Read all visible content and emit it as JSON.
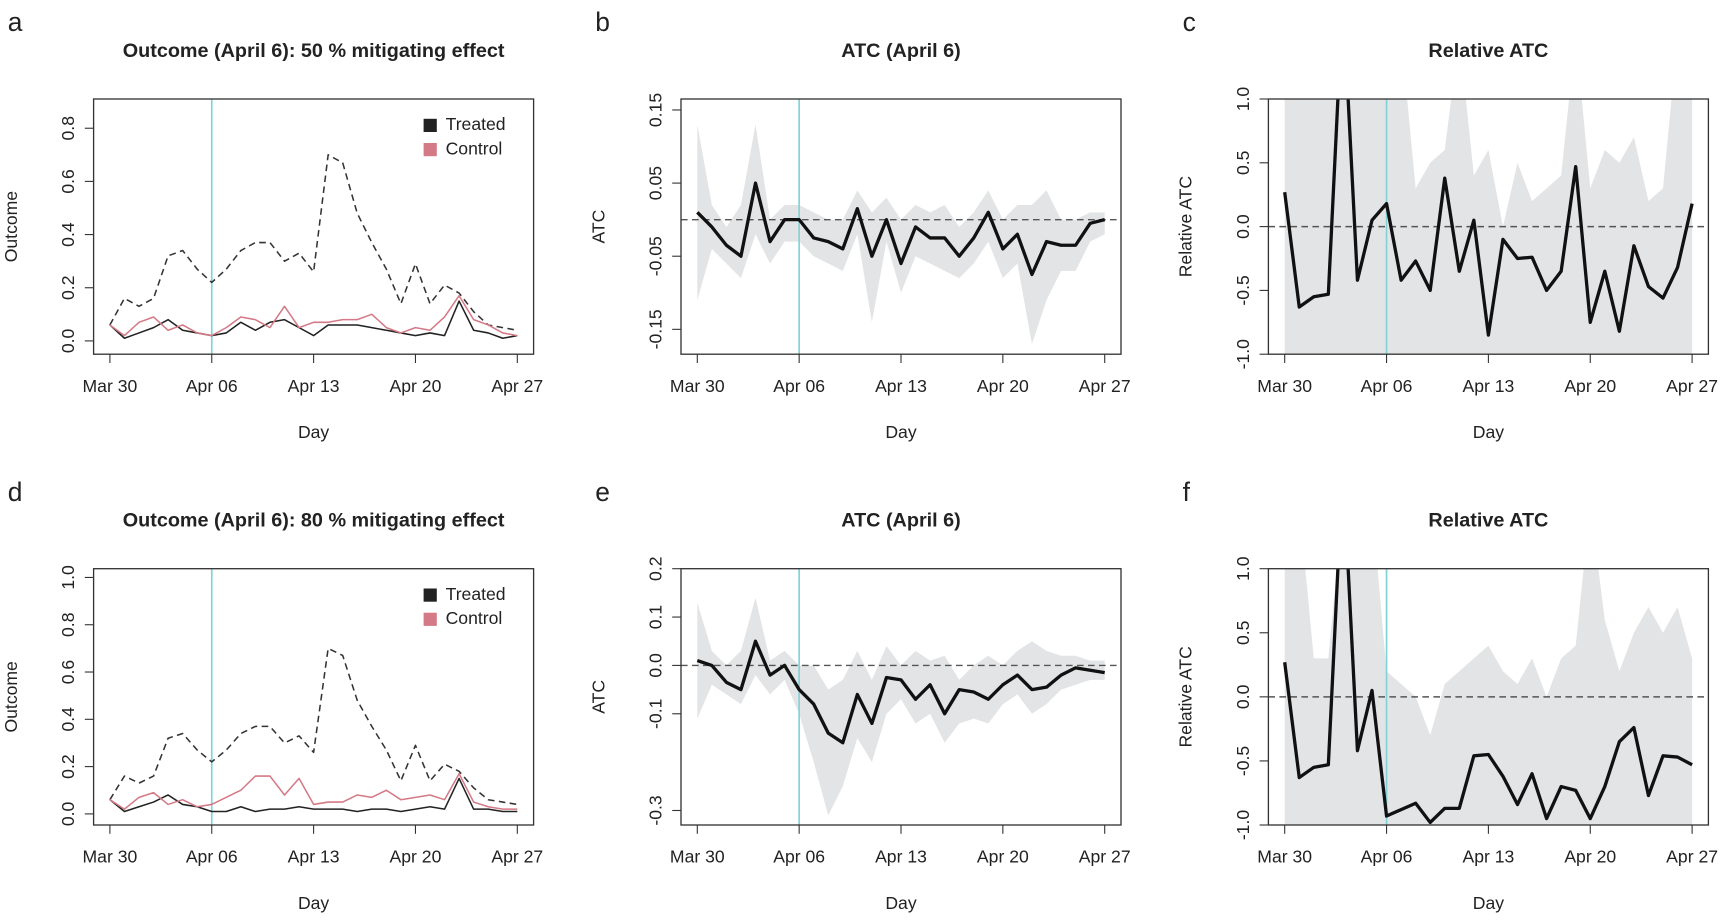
{
  "chart_data": [
    {
      "panel": "a",
      "type": "line",
      "title": "Outcome (April 6):  50 % mitigating effect",
      "xlabel": "Day",
      "ylabel": "Outcome",
      "x": [
        "Mar 30",
        "Mar 31",
        "Apr 01",
        "Apr 02",
        "Apr 03",
        "Apr 04",
        "Apr 05",
        "Apr 06",
        "Apr 07",
        "Apr 08",
        "Apr 09",
        "Apr 10",
        "Apr 11",
        "Apr 12",
        "Apr 13",
        "Apr 14",
        "Apr 15",
        "Apr 16",
        "Apr 17",
        "Apr 18",
        "Apr 19",
        "Apr 20",
        "Apr 21",
        "Apr 22",
        "Apr 23",
        "Apr 24",
        "Apr 25",
        "Apr 26",
        "Apr 27"
      ],
      "xticks": [
        "Mar 30",
        "Apr 06",
        "Apr 13",
        "Apr 20",
        "Apr 27"
      ],
      "vline": "Apr 06",
      "vline_color": "#7fd3d6",
      "ylim": [
        -0.05,
        0.91
      ],
      "yticks": [
        {
          "value": 0,
          "label": "0.0"
        },
        0.2,
        0.4,
        0.6,
        0.8
      ],
      "legend": "topright",
      "series": [
        {
          "color": "#333333",
          "dash": true,
          "values": [
            0.06,
            0.16,
            0.13,
            0.16,
            0.32,
            0.34,
            0.27,
            0.22,
            0.27,
            0.34,
            0.37,
            0.37,
            0.3,
            0.33,
            0.26,
            0.7,
            0.67,
            0.48,
            0.37,
            0.27,
            0.14,
            0.29,
            0.14,
            0.21,
            0.18,
            0.11,
            0.06,
            0.05,
            0.04
          ]
        },
        {
          "name": "Treated",
          "color": "#222222",
          "values": [
            0.06,
            0.01,
            0.03,
            0.05,
            0.08,
            0.04,
            0.03,
            0.02,
            0.03,
            0.07,
            0.04,
            0.07,
            0.08,
            0.05,
            0.02,
            0.06,
            0.06,
            0.06,
            0.05,
            0.04,
            0.03,
            0.02,
            0.03,
            0.02,
            0.15,
            0.04,
            0.03,
            0.01,
            0.02
          ]
        },
        {
          "name": "Control",
          "color": "#d47a86",
          "values": [
            0.06,
            0.02,
            0.07,
            0.09,
            0.04,
            0.06,
            0.03,
            0.02,
            0.05,
            0.09,
            0.08,
            0.05,
            0.13,
            0.05,
            0.07,
            0.07,
            0.08,
            0.08,
            0.1,
            0.05,
            0.03,
            0.05,
            0.04,
            0.09,
            0.17,
            0.08,
            0.06,
            0.03,
            0.02
          ]
        }
      ]
    },
    {
      "panel": "b",
      "type": "line",
      "title": "ATC (April 6)",
      "xlabel": "Day",
      "ylabel": "ATC",
      "x": [
        "Mar 30",
        "Mar 31",
        "Apr 01",
        "Apr 02",
        "Apr 03",
        "Apr 04",
        "Apr 05",
        "Apr 06",
        "Apr 07",
        "Apr 08",
        "Apr 09",
        "Apr 10",
        "Apr 11",
        "Apr 12",
        "Apr 13",
        "Apr 14",
        "Apr 15",
        "Apr 16",
        "Apr 17",
        "Apr 18",
        "Apr 19",
        "Apr 20",
        "Apr 21",
        "Apr 22",
        "Apr 23",
        "Apr 24",
        "Apr 25",
        "Apr 26",
        "Apr 27"
      ],
      "xticks": [
        "Mar 30",
        "Apr 06",
        "Apr 13",
        "Apr 20",
        "Apr 27"
      ],
      "vline": "Apr 06",
      "vline_color": "#7fd3d6",
      "hline": 0,
      "ylim": [
        -0.184,
        0.165
      ],
      "yticks": [
        -0.15,
        -0.05,
        0.05,
        0.15
      ],
      "band": {
        "color": "#e3e4e5",
        "lower": [
          -0.11,
          -0.04,
          -0.06,
          -0.08,
          -0.02,
          -0.06,
          -0.03,
          -0.03,
          -0.05,
          -0.06,
          -0.07,
          -0.02,
          -0.14,
          -0.03,
          -0.1,
          -0.05,
          -0.06,
          -0.07,
          -0.08,
          -0.06,
          -0.03,
          -0.08,
          -0.06,
          -0.17,
          -0.11,
          -0.07,
          -0.07,
          -0.03,
          -0.02
        ],
        "upper": [
          0.13,
          0.02,
          -0.01,
          0.02,
          0.13,
          0.0,
          0.02,
          0.02,
          0.01,
          0.0,
          0.0,
          0.04,
          0.01,
          0.03,
          0.0,
          0.02,
          0.01,
          0.02,
          -0.01,
          0.01,
          0.04,
          0.0,
          0.02,
          0.02,
          0.04,
          0.0,
          0.0,
          0.01,
          0.01
        ]
      },
      "series": [
        {
          "color": "#111111",
          "width": 3,
          "values": [
            0.01,
            -0.01,
            -0.035,
            -0.05,
            0.05,
            -0.03,
            0.0,
            0.0,
            -0.025,
            -0.03,
            -0.04,
            0.015,
            -0.05,
            0.0,
            -0.06,
            -0.01,
            -0.025,
            -0.025,
            -0.05,
            -0.025,
            0.01,
            -0.04,
            -0.02,
            -0.075,
            -0.03,
            -0.035,
            -0.035,
            -0.005,
            0.0
          ]
        }
      ]
    },
    {
      "panel": "c",
      "type": "line",
      "title": "Relative ATC",
      "xlabel": "Day",
      "ylabel": "Relative ATC",
      "x": [
        "Mar 30",
        "Mar 31",
        "Apr 01",
        "Apr 02",
        "Apr 03",
        "Apr 04",
        "Apr 05",
        "Apr 06",
        "Apr 07",
        "Apr 08",
        "Apr 09",
        "Apr 10",
        "Apr 11",
        "Apr 12",
        "Apr 13",
        "Apr 14",
        "Apr 15",
        "Apr 16",
        "Apr 17",
        "Apr 18",
        "Apr 19",
        "Apr 20",
        "Apr 21",
        "Apr 22",
        "Apr 23",
        "Apr 24",
        "Apr 25",
        "Apr 26",
        "Apr 27"
      ],
      "xticks": [
        "Mar 30",
        "Apr 06",
        "Apr 13",
        "Apr 20",
        "Apr 27"
      ],
      "vline": "Apr 06",
      "vline_color": "#7fd3d6",
      "hline": 0,
      "ylim": [
        -1,
        1
      ],
      "yticks": [
        {
          "value": -1,
          "label": "-1.0"
        },
        -0.5,
        {
          "value": 0,
          "label": "0.0"
        },
        0.5,
        {
          "value": 1,
          "label": "1.0"
        }
      ],
      "band": {
        "color": "#e3e4e5",
        "lower": [
          -1.2,
          -1.2,
          -1.2,
          -1.2,
          -1.2,
          -1.2,
          -1.2,
          -1.2,
          -1.2,
          -1.2,
          -1.2,
          -1.2,
          -1.2,
          -1.2,
          -1.2,
          -1.2,
          -1.2,
          -1.2,
          -1.2,
          -1.2,
          -1.2,
          -1.2,
          -1.2,
          -1.2,
          -1.2,
          -1.2,
          -1.2,
          -1.2,
          -1.2
        ],
        "upper": [
          1.5,
          1.5,
          1.5,
          1.5,
          1.5,
          1.5,
          1.5,
          1.5,
          1.5,
          0.3,
          0.5,
          0.6,
          1.5,
          0.4,
          0.6,
          0.0,
          0.5,
          0.2,
          0.3,
          0.4,
          1.5,
          0.3,
          0.6,
          0.5,
          0.7,
          0.2,
          0.3,
          1.5,
          1.5
        ]
      },
      "series": [
        {
          "color": "#111111",
          "width": 3,
          "values": [
            0.27,
            -0.63,
            -0.55,
            -0.53,
            1.8,
            -0.42,
            0.05,
            0.18,
            -0.42,
            -0.27,
            -0.5,
            0.38,
            -0.35,
            0.05,
            -0.85,
            -0.1,
            -0.25,
            -0.24,
            -0.5,
            -0.35,
            0.47,
            -0.75,
            -0.35,
            -0.82,
            -0.15,
            -0.47,
            -0.56,
            -0.32,
            0.18
          ]
        }
      ]
    },
    {
      "panel": "d",
      "type": "line",
      "title": "Outcome (April 6):  80 % mitigating effect",
      "xlabel": "Day",
      "ylabel": "Outcome",
      "x": [
        "Mar 30",
        "Mar 31",
        "Apr 01",
        "Apr 02",
        "Apr 03",
        "Apr 04",
        "Apr 05",
        "Apr 06",
        "Apr 07",
        "Apr 08",
        "Apr 09",
        "Apr 10",
        "Apr 11",
        "Apr 12",
        "Apr 13",
        "Apr 14",
        "Apr 15",
        "Apr 16",
        "Apr 17",
        "Apr 18",
        "Apr 19",
        "Apr 20",
        "Apr 21",
        "Apr 22",
        "Apr 23",
        "Apr 24",
        "Apr 25",
        "Apr 26",
        "Apr 27"
      ],
      "xticks": [
        "Mar 30",
        "Apr 06",
        "Apr 13",
        "Apr 20",
        "Apr 27"
      ],
      "vline": "Apr 06",
      "vline_color": "#7fd3d6",
      "ylim": [
        -0.047,
        1.037
      ],
      "yticks": [
        {
          "value": 0,
          "label": "0.0"
        },
        0.2,
        0.4,
        0.6,
        0.8,
        {
          "value": 1,
          "label": "1.0"
        }
      ],
      "legend": "topright",
      "series": [
        {
          "color": "#333333",
          "dash": true,
          "values": [
            0.06,
            0.16,
            0.13,
            0.16,
            0.32,
            0.34,
            0.27,
            0.22,
            0.27,
            0.34,
            0.37,
            0.37,
            0.3,
            0.33,
            0.26,
            0.7,
            0.67,
            0.48,
            0.37,
            0.27,
            0.14,
            0.29,
            0.14,
            0.21,
            0.18,
            0.11,
            0.06,
            0.05,
            0.04
          ]
        },
        {
          "name": "Treated",
          "color": "#222222",
          "values": [
            0.06,
            0.01,
            0.03,
            0.05,
            0.08,
            0.04,
            0.03,
            0.01,
            0.01,
            0.03,
            0.01,
            0.02,
            0.02,
            0.03,
            0.02,
            0.02,
            0.02,
            0.01,
            0.02,
            0.02,
            0.01,
            0.02,
            0.03,
            0.02,
            0.15,
            0.02,
            0.02,
            0.01,
            0.01
          ]
        },
        {
          "name": "Control",
          "color": "#d47a86",
          "values": [
            0.06,
            0.02,
            0.07,
            0.09,
            0.04,
            0.06,
            0.03,
            0.04,
            0.07,
            0.1,
            0.16,
            0.16,
            0.08,
            0.15,
            0.04,
            0.05,
            0.05,
            0.08,
            0.07,
            0.1,
            0.06,
            0.07,
            0.08,
            0.06,
            0.17,
            0.05,
            0.03,
            0.02,
            0.02
          ]
        }
      ]
    },
    {
      "panel": "e",
      "type": "line",
      "title": "ATC (April 6)",
      "xlabel": "Day",
      "ylabel": "ATC",
      "x": [
        "Mar 30",
        "Mar 31",
        "Apr 01",
        "Apr 02",
        "Apr 03",
        "Apr 04",
        "Apr 05",
        "Apr 06",
        "Apr 07",
        "Apr 08",
        "Apr 09",
        "Apr 10",
        "Apr 11",
        "Apr 12",
        "Apr 13",
        "Apr 14",
        "Apr 15",
        "Apr 16",
        "Apr 17",
        "Apr 18",
        "Apr 19",
        "Apr 20",
        "Apr 21",
        "Apr 22",
        "Apr 23",
        "Apr 24",
        "Apr 25",
        "Apr 26",
        "Apr 27"
      ],
      "xticks": [
        "Mar 30",
        "Apr 06",
        "Apr 13",
        "Apr 20",
        "Apr 27"
      ],
      "vline": "Apr 06",
      "vline_color": "#7fd3d6",
      "hline": 0,
      "ylim": [
        -0.33,
        0.2
      ],
      "yticks": [
        -0.3,
        -0.1,
        {
          "value": 0,
          "label": "0.0"
        },
        0.1,
        0.2
      ],
      "band": {
        "color": "#e3e4e5",
        "lower": [
          -0.11,
          -0.04,
          -0.06,
          -0.08,
          -0.02,
          -0.06,
          -0.03,
          -0.1,
          -0.2,
          -0.31,
          -0.25,
          -0.15,
          -0.2,
          -0.1,
          -0.07,
          -0.12,
          -0.1,
          -0.16,
          -0.12,
          -0.11,
          -0.12,
          -0.08,
          -0.06,
          -0.1,
          -0.08,
          -0.05,
          -0.04,
          -0.03,
          -0.03
        ],
        "upper": [
          0.13,
          0.03,
          0.0,
          0.03,
          0.14,
          0.01,
          0.03,
          0.0,
          0.0,
          -0.05,
          -0.03,
          0.03,
          -0.03,
          0.04,
          0.0,
          0.03,
          0.01,
          0.02,
          -0.03,
          0.0,
          0.02,
          0.0,
          0.03,
          0.05,
          0.03,
          0.02,
          0.02,
          0.01,
          0.01
        ]
      },
      "series": [
        {
          "color": "#111111",
          "width": 3,
          "values": [
            0.01,
            -0.0,
            -0.035,
            -0.05,
            0.05,
            -0.02,
            0.0,
            -0.05,
            -0.08,
            -0.14,
            -0.16,
            -0.06,
            -0.12,
            -0.025,
            -0.03,
            -0.07,
            -0.04,
            -0.1,
            -0.05,
            -0.055,
            -0.07,
            -0.04,
            -0.02,
            -0.05,
            -0.045,
            -0.02,
            -0.005,
            -0.01,
            -0.015
          ]
        }
      ]
    },
    {
      "panel": "f",
      "type": "line",
      "title": "Relative ATC",
      "xlabel": "Day",
      "ylabel": "Relative ATC",
      "x": [
        "Mar 30",
        "Mar 31",
        "Apr 01",
        "Apr 02",
        "Apr 03",
        "Apr 04",
        "Apr 05",
        "Apr 06",
        "Apr 07",
        "Apr 08",
        "Apr 09",
        "Apr 10",
        "Apr 11",
        "Apr 12",
        "Apr 13",
        "Apr 14",
        "Apr 15",
        "Apr 16",
        "Apr 17",
        "Apr 18",
        "Apr 19",
        "Apr 20",
        "Apr 21",
        "Apr 22",
        "Apr 23",
        "Apr 24",
        "Apr 25",
        "Apr 26",
        "Apr 27"
      ],
      "xticks": [
        "Mar 30",
        "Apr 06",
        "Apr 13",
        "Apr 20",
        "Apr 27"
      ],
      "vline": "Apr 06",
      "vline_color": "#7fd3d6",
      "hline": 0,
      "ylim": [
        -1,
        1
      ],
      "yticks": [
        {
          "value": -1,
          "label": "-1.0"
        },
        -0.5,
        {
          "value": 0,
          "label": "0.0"
        },
        0.5,
        {
          "value": 1,
          "label": "1.0"
        }
      ],
      "band": {
        "color": "#e3e4e5",
        "lower": [
          -1.2,
          -1.2,
          -1.2,
          -1.2,
          -1.2,
          -1.2,
          -1.2,
          -1.2,
          -1.2,
          -1.2,
          -1.2,
          -1.2,
          -1.2,
          -1.2,
          -1.2,
          -1.2,
          -1.2,
          -1.2,
          -1.2,
          -1.2,
          -1.2,
          -1.2,
          -1.2,
          -1.2,
          -1.2,
          -1.2,
          -1.2,
          -1.2,
          -1.2
        ],
        "upper": [
          1.5,
          1.5,
          0.3,
          0.3,
          1.5,
          1.5,
          1.5,
          0.2,
          0.1,
          0.0,
          -0.3,
          0.1,
          0.2,
          0.3,
          0.4,
          0.2,
          0.1,
          0.3,
          0.0,
          0.3,
          0.4,
          1.5,
          0.6,
          0.2,
          0.5,
          0.7,
          0.5,
          0.7,
          0.3
        ]
      },
      "series": [
        {
          "color": "#111111",
          "width": 3,
          "values": [
            0.27,
            -0.63,
            -0.55,
            -0.53,
            1.8,
            -0.42,
            0.05,
            -0.93,
            -0.88,
            -0.83,
            -0.98,
            -0.87,
            -0.87,
            -0.46,
            -0.45,
            -0.62,
            -0.84,
            -0.6,
            -0.95,
            -0.7,
            -0.73,
            -0.95,
            -0.7,
            -0.35,
            -0.24,
            -0.77,
            -0.46,
            -0.47,
            -0.53
          ]
        }
      ]
    }
  ]
}
